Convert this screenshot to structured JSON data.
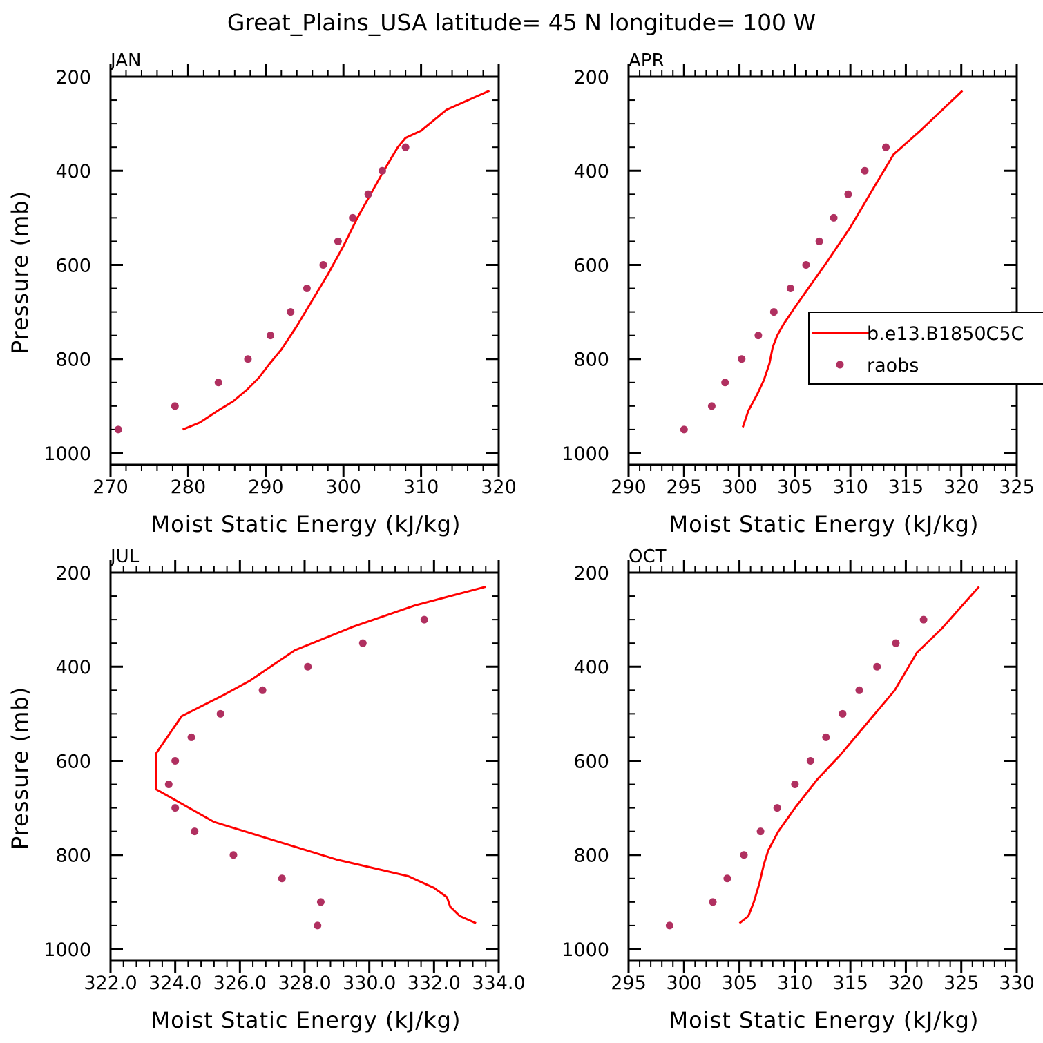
{
  "title": "Great_Plains_USA  latitude= 45 N longitude= 100 W",
  "legend": {
    "model_label": "b.e13.B1850C5C",
    "obs_label": "raobs"
  },
  "colors": {
    "model_line": "#ff0000",
    "obs_marker": "#b03060",
    "axes": "#000000"
  },
  "chart_data": [
    {
      "type": "line",
      "panel": "JAN",
      "xlabel": "Moist Static Energy (kJ/kg)",
      "ylabel": "Pressure (mb)",
      "xlim": [
        270,
        320
      ],
      "ylim": [
        1000,
        200
      ],
      "y_inverted": true,
      "xticks": [
        270,
        280,
        290,
        300,
        310,
        320
      ],
      "xtick_labels": [
        "270",
        "280",
        "290",
        "300",
        "310",
        "320"
      ],
      "yticks": [
        200,
        400,
        600,
        800,
        1000
      ],
      "ytick_labels": [
        "200",
        "400",
        "600",
        "800",
        "1000"
      ],
      "series": [
        {
          "name": "b.e13.B1850C5C",
          "kind": "line",
          "x": [
            279.3,
            281.5,
            283.8,
            285.8,
            287.6,
            289.1,
            290.5,
            292.0,
            294.0,
            296.0,
            298.0,
            300.0,
            301.8,
            303.5,
            305.2,
            307.0,
            308.0,
            310.0,
            313.3,
            318.8
          ],
          "y": [
            950,
            935,
            910,
            890,
            865,
            840,
            810,
            780,
            730,
            675,
            620,
            560,
            500,
            450,
            400,
            350,
            330,
            315,
            270,
            230
          ]
        },
        {
          "name": "raobs",
          "kind": "scatter",
          "x": [
            271.0,
            278.3,
            283.9,
            287.7,
            290.6,
            293.2,
            295.3,
            297.4,
            299.3,
            301.2,
            303.2,
            305.0,
            308.0
          ],
          "y": [
            950,
            900,
            850,
            800,
            750,
            700,
            650,
            600,
            550,
            500,
            450,
            400,
            350
          ]
        }
      ]
    },
    {
      "type": "line",
      "panel": "APR",
      "xlabel": "Moist Static Energy (kJ/kg)",
      "ylabel": "",
      "xlim": [
        290,
        325
      ],
      "ylim": [
        1000,
        200
      ],
      "y_inverted": true,
      "xticks": [
        290,
        295,
        300,
        305,
        310,
        315,
        320,
        325
      ],
      "xtick_labels": [
        "290",
        "295",
        "300",
        "305",
        "310",
        "315",
        "320",
        "325"
      ],
      "yticks": [
        200,
        400,
        600,
        800,
        1000
      ],
      "ytick_labels": [
        "200",
        "400",
        "600",
        "800",
        "1000"
      ],
      "legend_location": "right",
      "series": [
        {
          "name": "b.e13.B1850C5C",
          "kind": "line",
          "x": [
            300.3,
            300.8,
            301.6,
            302.2,
            302.7,
            303.0,
            303.4,
            304.0,
            305.0,
            306.5,
            308.0,
            310.0,
            312.0,
            313.9,
            316.3,
            320.1
          ],
          "y": [
            945,
            910,
            875,
            845,
            810,
            775,
            750,
            725,
            690,
            640,
            590,
            520,
            440,
            365,
            315,
            230
          ]
        },
        {
          "name": "raobs",
          "kind": "scatter",
          "x": [
            295.0,
            297.5,
            298.7,
            300.2,
            301.7,
            303.1,
            304.6,
            306.0,
            307.2,
            308.5,
            309.8,
            311.3,
            313.2
          ],
          "y": [
            950,
            900,
            850,
            800,
            750,
            700,
            650,
            600,
            550,
            500,
            450,
            400,
            350
          ]
        }
      ]
    },
    {
      "type": "line",
      "panel": "JUL",
      "xlabel": "Moist Static Energy (kJ/kg)",
      "ylabel": "Pressure (mb)",
      "xlim": [
        322.0,
        334.0
      ],
      "ylim": [
        1000,
        200
      ],
      "y_inverted": true,
      "xticks": [
        322,
        324,
        326,
        328,
        330,
        332,
        334
      ],
      "xtick_labels": [
        "322.0",
        "324.0",
        "326.0",
        "328.0",
        "330.0",
        "332.0",
        "334.0"
      ],
      "yticks": [
        200,
        400,
        600,
        800,
        1000
      ],
      "ytick_labels": [
        "200",
        "400",
        "600",
        "800",
        "1000"
      ],
      "series": [
        {
          "name": "b.e13.B1850C5C",
          "kind": "line",
          "x": [
            333.3,
            332.8,
            332.5,
            332.4,
            332.0,
            331.2,
            329.0,
            325.2,
            323.4,
            323.4,
            324.2,
            325.5,
            326.3,
            327.7,
            329.5,
            331.4,
            333.6
          ],
          "y": [
            945,
            930,
            910,
            890,
            870,
            845,
            810,
            730,
            660,
            585,
            505,
            460,
            430,
            365,
            315,
            270,
            230
          ]
        },
        {
          "name": "raobs",
          "kind": "scatter",
          "x": [
            328.4,
            328.5,
            327.3,
            325.8,
            324.6,
            324.0,
            323.8,
            324.0,
            324.5,
            325.4,
            326.7,
            328.1,
            329.8,
            331.7
          ],
          "y": [
            950,
            900,
            850,
            800,
            750,
            700,
            650,
            600,
            550,
            500,
            450,
            400,
            350,
            300
          ]
        }
      ]
    },
    {
      "type": "line",
      "panel": "OCT",
      "xlabel": "Moist Static Energy (kJ/kg)",
      "ylabel": "",
      "xlim": [
        295,
        330
      ],
      "ylim": [
        1000,
        200
      ],
      "y_inverted": true,
      "xticks": [
        295,
        300,
        305,
        310,
        315,
        320,
        325,
        330
      ],
      "xtick_labels": [
        "295",
        "300",
        "305",
        "310",
        "315",
        "320",
        "325",
        "330"
      ],
      "yticks": [
        200,
        400,
        600,
        800,
        1000
      ],
      "ytick_labels": [
        "200",
        "400",
        "600",
        "800",
        "1000"
      ],
      "series": [
        {
          "name": "b.e13.B1850C5C",
          "kind": "line",
          "x": [
            305.0,
            305.8,
            306.3,
            306.8,
            307.2,
            307.6,
            308.5,
            310.0,
            312.0,
            314.0,
            316.5,
            319.0,
            321.0,
            323.2,
            326.6
          ],
          "y": [
            945,
            930,
            900,
            860,
            820,
            790,
            750,
            700,
            640,
            590,
            520,
            450,
            370,
            320,
            230
          ]
        },
        {
          "name": "raobs",
          "kind": "scatter",
          "x": [
            298.7,
            302.6,
            303.9,
            305.4,
            306.9,
            308.4,
            310.0,
            311.4,
            312.8,
            314.3,
            315.8,
            317.4,
            319.1,
            321.6
          ],
          "y": [
            950,
            900,
            850,
            800,
            750,
            700,
            650,
            600,
            550,
            500,
            450,
            400,
            350,
            300
          ]
        }
      ]
    }
  ]
}
